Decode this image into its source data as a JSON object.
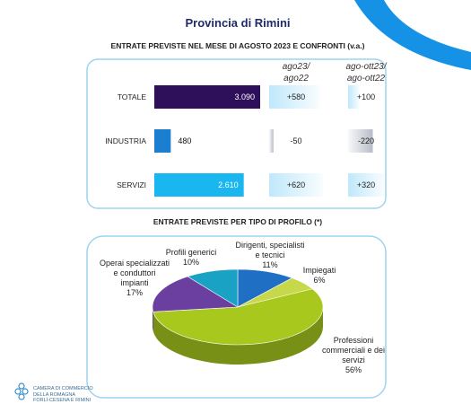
{
  "header": {
    "title": "Provincia di Rimini"
  },
  "chart_data": [
    {
      "type": "bar",
      "title": "ENTRATE PREVISTE NEL MESE DI  AGOSTO 2023 E CONFRONTI (v.a.)",
      "categories": [
        "TOTALE",
        "INDUSTRIA",
        "SERVIZI"
      ],
      "values": [
        3090,
        480,
        2610
      ],
      "value_labels": [
        "3.090",
        "480",
        "2.610"
      ],
      "colors": [
        "#2e0f5a",
        "#1a7fd0",
        "#19b6f0"
      ],
      "comparisons": [
        {
          "name": "ago23/\nago22",
          "values": [
            580,
            -50,
            620
          ],
          "value_labels": [
            "+580",
            "-50",
            "+620"
          ]
        },
        {
          "name": "ago-ott23/\nago-ott22",
          "values": [
            100,
            -220,
            320
          ],
          "value_labels": [
            "+100",
            "-220",
            "+320"
          ]
        }
      ]
    },
    {
      "type": "pie",
      "title": "ENTRATE PREVISTE PER TIPO DI PROFILO (*)",
      "categories": [
        "Dirigenti, specialisti e tecnici",
        "Impiegati",
        "Professioni commerciali e dei servizi",
        "Operai specializzati e conduttori impianti",
        "Profili generici"
      ],
      "values": [
        11,
        6,
        56,
        17,
        10
      ],
      "value_labels": [
        "11%",
        "6%",
        "56%",
        "17%",
        "10%"
      ],
      "colors": [
        "#1f6fc5",
        "#c7d94a",
        "#a8c81e",
        "#6a3fa0",
        "#1aa2c4"
      ]
    }
  ],
  "footer": {
    "lines": [
      "CAMERA DI COMMERCIO",
      "DELLA ROMAGNA",
      "FORLÌ-CESENA E RIMINI"
    ]
  }
}
